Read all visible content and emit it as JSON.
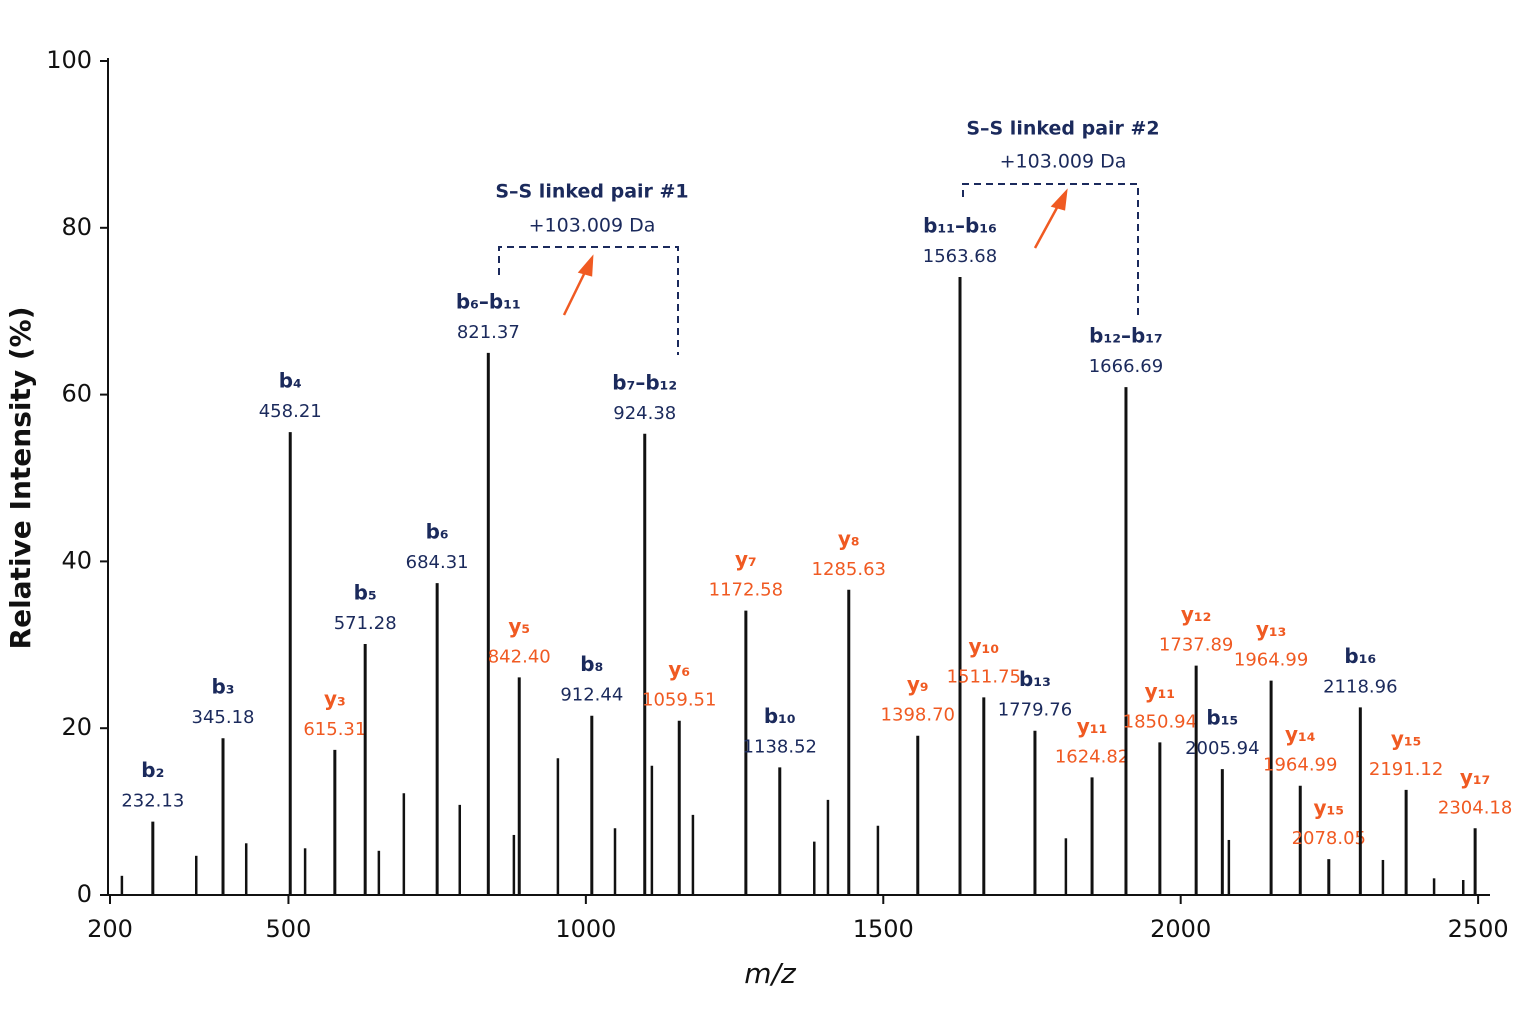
{
  "chart_data": {
    "type": "spectrum",
    "x_label": "m/z",
    "y_label": "Relative Intensity (%)",
    "xlim": [
      200,
      2520
    ],
    "ylim": [
      0,
      100
    ],
    "xticks": [
      200,
      500,
      1000,
      1500,
      2000,
      2500
    ],
    "yticks": [
      0,
      20,
      40,
      60,
      80,
      100
    ],
    "peak_color": "#111111",
    "peaks": {
      "x": [
        220,
        345,
        429,
        528,
        652,
        694,
        788,
        879,
        953,
        1049,
        1111,
        1180,
        1384,
        1407,
        1491,
        1807,
        2081,
        2340,
        2426,
        2475
      ],
      "values": [
        2.3,
        4.7,
        6.2,
        5.6,
        5.3,
        12.2,
        10.8,
        7.2,
        16.4,
        8.0,
        15.5,
        9.6,
        6.4,
        11.4,
        8.3,
        6.8,
        6.6,
        4.2,
        2.0,
        1.8
      ]
    },
    "annotated_peaks": [
      {
        "x": 272,
        "value": 8.8,
        "ion": "b₂",
        "mz": "232.13",
        "color": "#1b2a5c"
      },
      {
        "x": 390,
        "value": 18.8,
        "ion": "b₃",
        "mz": "345.18",
        "color": "#1b2a5c"
      },
      {
        "x": 503,
        "value": 55.5,
        "ion": "b₄",
        "mz": "458.21",
        "color": "#1b2a5c"
      },
      {
        "x": 578,
        "value": 17.4,
        "ion": "y₃",
        "mz": "615.31",
        "color": "#f05a22"
      },
      {
        "x": 629,
        "value": 30.1,
        "ion": "b₅",
        "mz": "571.28",
        "color": "#1b2a5c"
      },
      {
        "x": 750,
        "value": 37.4,
        "ion": "b₆",
        "mz": "684.31",
        "color": "#1b2a5c"
      },
      {
        "x": 836,
        "value": 65.0,
        "ion": "b₆–b₁₁",
        "mz": "821.37",
        "color": "#1b2a5c"
      },
      {
        "x": 888,
        "value": 26.1,
        "ion": "y₅",
        "mz": "842.40",
        "color": "#f05a22"
      },
      {
        "x": 1010,
        "value": 21.5,
        "ion": "b₈",
        "mz": "912.44",
        "color": "#1b2a5c"
      },
      {
        "x": 1099,
        "value": 55.3,
        "ion": "b₇–b₁₂",
        "mz": "924.38",
        "color": "#1b2a5c"
      },
      {
        "x": 1157,
        "value": 20.9,
        "ion": "y₆",
        "mz": "1059.51",
        "color": "#f05a22"
      },
      {
        "x": 1269,
        "value": 34.1,
        "ion": "y₇",
        "mz": "1172.58",
        "color": "#f05a22"
      },
      {
        "x": 1326,
        "value": 15.3,
        "ion": "b₁₀",
        "mz": "1138.52",
        "color": "#1b2a5c"
      },
      {
        "x": 1442,
        "value": 36.6,
        "ion": "y₈",
        "mz": "1285.63",
        "color": "#f05a22"
      },
      {
        "x": 1558,
        "value": 19.1,
        "ion": "y₉",
        "mz": "1398.70",
        "color": "#f05a22"
      },
      {
        "x": 1629,
        "value": 74.1,
        "ion": "b₁₁–b₁₆",
        "mz": "1563.68",
        "color": "#1b2a5c"
      },
      {
        "x": 1669,
        "value": 23.7,
        "ion": "y₁₀",
        "mz": "1511.75",
        "color": "#f05a22"
      },
      {
        "x": 1755,
        "value": 19.7,
        "ion": "b₁₃",
        "mz": "1779.76",
        "color": "#1b2a5c"
      },
      {
        "x": 1851,
        "value": 14.1,
        "ion": "y₁₁",
        "mz": "1624.82",
        "color": "#f05a22"
      },
      {
        "x": 1908,
        "value": 60.9,
        "ion": "b₁₂–b₁₇",
        "mz": "1666.69",
        "color": "#1b2a5c"
      },
      {
        "x": 1965,
        "value": 18.3,
        "ion": "y₁₁",
        "mz": "1850.94",
        "color": "#f05a22"
      },
      {
        "x": 2026,
        "value": 27.5,
        "ion": "y₁₂",
        "mz": "1737.89",
        "color": "#f05a22"
      },
      {
        "x": 2070,
        "value": 15.1,
        "ion": "b₁₅",
        "mz": "2005.94",
        "color": "#1b2a5c"
      },
      {
        "x": 2152,
        "value": 25.7,
        "ion": "y₁₃",
        "mz": "1964.99",
        "color": "#f05a22"
      },
      {
        "x": 2201,
        "value": 13.1,
        "ion": "y₁₄",
        "mz": "1964.99",
        "color": "#f05a22"
      },
      {
        "x": 2249,
        "value": 4.3,
        "ion": "y₁₅",
        "mz": "2078.05",
        "color": "#f05a22"
      },
      {
        "x": 2302,
        "value": 22.5,
        "ion": "b₁₆",
        "mz": "2118.96",
        "color": "#1b2a5c"
      },
      {
        "x": 2379,
        "value": 12.6,
        "ion": "y₁₅",
        "mz": "2191.12",
        "color": "#f05a22"
      },
      {
        "x": 2495,
        "value": 8.0,
        "ion": "y₁₇",
        "mz": "2304.18",
        "color": "#f05a22"
      }
    ],
    "linked_pairs": [
      {
        "title": "S–S linked pair #1",
        "shift": "+103.009 Da"
      },
      {
        "title": "S–S linked pair #2",
        "shift": "+103.009 Da"
      }
    ]
  }
}
